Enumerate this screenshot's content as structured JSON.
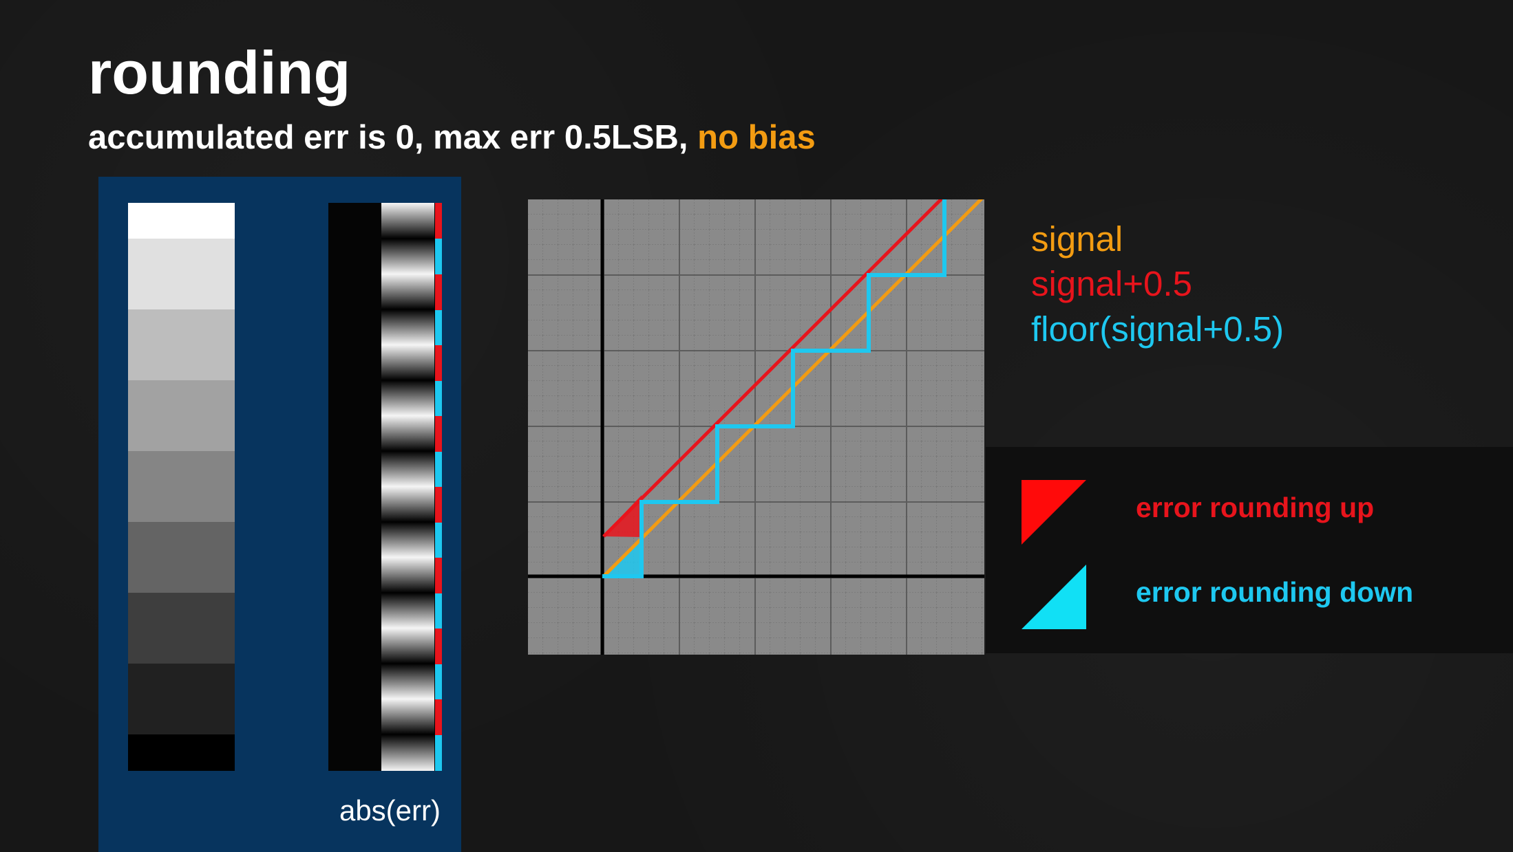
{
  "title": "rounding",
  "subtitle": {
    "main": "accumulated err is 0, max err 0.5LSB, ",
    "accent": "no bias"
  },
  "abs_label": "abs(err)",
  "legend": {
    "signal": "signal",
    "signal_plus": "signal+0.5",
    "floor": "floor(signal+0.5)"
  },
  "error_legend": {
    "up": "error rounding up",
    "down": "error rounding down"
  },
  "colors": {
    "signal": "#f39c12",
    "signal_plus": "#e8141c",
    "floor": "#1ec8f0",
    "panel": "#07345e"
  },
  "ramp_levels": [
    "#ffffff",
    "#e0e0e0",
    "#bdbdbd",
    "#a2a2a2",
    "#858585",
    "#646464",
    "#3e3e3e",
    "#212121",
    "#000000"
  ]
}
